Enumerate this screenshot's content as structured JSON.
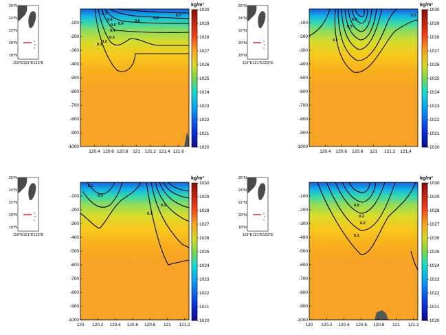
{
  "colorbar": {
    "unit": "kg/m³",
    "ticks": [
      "1020",
      "1021",
      "1022",
      "1023",
      "1024",
      "1025",
      "1026",
      "1027",
      "1028",
      "1029",
      "1030"
    ],
    "range": [
      1020,
      1030
    ]
  },
  "maps": [
    {
      "lat_ticks": [
        "26°N",
        "24°N",
        "22°N",
        "20°N",
        "18°N"
      ],
      "lon_ticks": [
        "119°E",
        "121°E",
        "123°E"
      ]
    },
    {
      "lat_ticks": [
        "26°N",
        "24°N",
        "22°N",
        "20°N",
        "18°N"
      ],
      "lon_ticks": [
        "119°E",
        "121°E",
        "123°E"
      ]
    },
    {
      "lat_ticks": [
        "26°N",
        "24°N",
        "22°N",
        "20°N",
        "18°N"
      ],
      "lon_ticks": [
        "119°E",
        "121°E",
        "123°E"
      ]
    },
    {
      "lat_ticks": [
        "26°N",
        "24°N",
        "22°N",
        "20°N",
        "18°N"
      ],
      "lon_ticks": [
        "119°E",
        "121°E",
        "123°E"
      ]
    }
  ],
  "chart_data": [
    {
      "type": "heatmap",
      "xlim": [
        120.2,
        121.75
      ],
      "ylim": [
        -1000,
        0
      ],
      "xticks": [
        "120.4",
        "120.6",
        "120.8",
        "121",
        "121.2",
        "121.4",
        "121.6"
      ],
      "yticks": [
        "-100",
        "-200",
        "-300",
        "-400",
        "-500",
        "-600",
        "-700",
        "-800",
        "-900",
        "-1000"
      ],
      "contour_labels": [
        "0.7",
        "0.6",
        "0.5",
        "0.4",
        "0.3",
        "0.2",
        "0.1",
        "0.4",
        "0.5",
        "0.6",
        "0.7"
      ]
    },
    {
      "type": "heatmap",
      "xlim": [
        120.2,
        121.55
      ],
      "ylim": [
        -1000,
        0
      ],
      "xticks": [
        "120.4",
        "120.6",
        "120.8",
        "121",
        "121.2",
        "121.4"
      ],
      "yticks": [
        "-100",
        "-200",
        "-300",
        "-400",
        "-500",
        "-600",
        "-700",
        "-800",
        "-900",
        "-1000"
      ],
      "contour_labels": [
        "0.1",
        "0.7",
        "0.5",
        "0.3"
      ]
    },
    {
      "type": "heatmap",
      "xlim": [
        120,
        121.25
      ],
      "ylim": [
        -1000,
        0
      ],
      "xticks": [
        "120",
        "120.2",
        "120.4",
        "120.6",
        "120.8",
        "121",
        "121.2"
      ],
      "yticks": [
        "-100",
        "-200",
        "-300",
        "-400",
        "-500",
        "-600",
        "-700",
        "-800",
        "-900",
        "-1000"
      ],
      "contour_labels": [
        "0.3",
        "0.1",
        "0.1",
        "0.3"
      ]
    },
    {
      "type": "heatmap",
      "xlim": [
        120,
        121.25
      ],
      "ylim": [
        -1000,
        0
      ],
      "xticks": [
        "120",
        "120.2",
        "120.4",
        "120.6",
        "120.8",
        "121",
        "121.2"
      ],
      "yticks": [
        "-100",
        "-200",
        "-300",
        "-400",
        "-500",
        "-600",
        "-700",
        "-800",
        "-900",
        "-1000"
      ],
      "contour_labels": [
        "0.5",
        "0.3",
        "0.2",
        "0.1"
      ]
    }
  ]
}
